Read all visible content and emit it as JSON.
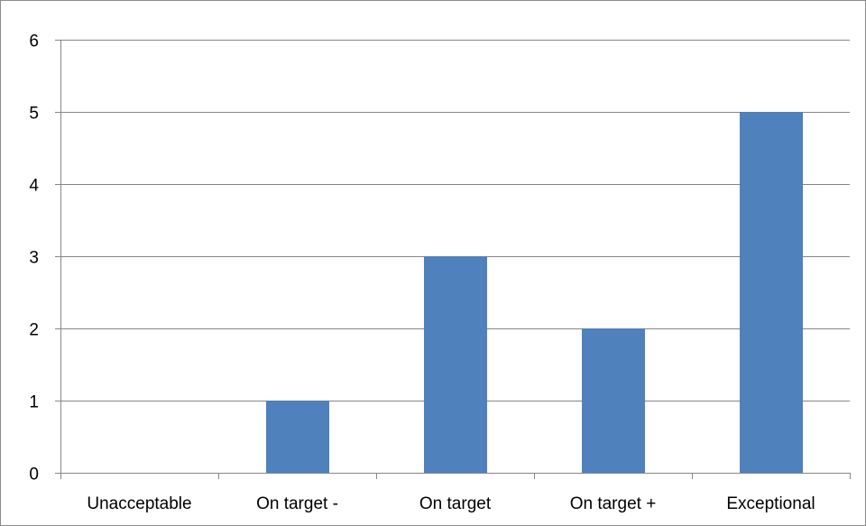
{
  "chart_data": {
    "type": "bar",
    "title": "",
    "xlabel": "",
    "ylabel": "",
    "categories": [
      "Unacceptable",
      "On target -",
      "On target",
      "On target +",
      "Exceptional"
    ],
    "values": [
      0,
      1,
      3,
      2,
      5
    ],
    "ylim": [
      0,
      6
    ],
    "yticks": [
      0,
      1,
      2,
      3,
      4,
      5,
      6
    ],
    "grid": true,
    "legend": "none",
    "bar_color": "#4f81bd",
    "gridline_color": "#868686"
  }
}
